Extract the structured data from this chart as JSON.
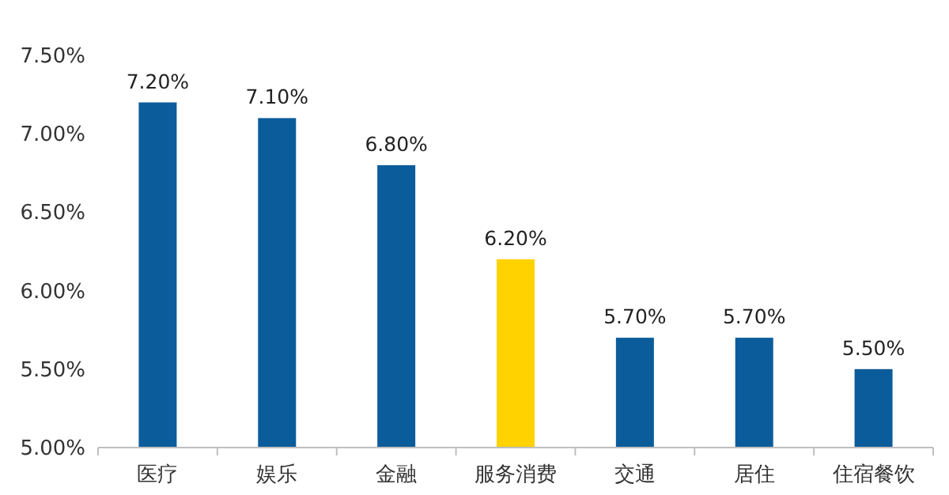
{
  "chart_data": {
    "type": "bar",
    "categories": [
      "医疗",
      "娱乐",
      "金融",
      "服务消费",
      "交通",
      "居住",
      "住宿餐饮"
    ],
    "values": [
      7.2,
      7.1,
      6.8,
      6.2,
      5.7,
      5.7,
      5.5
    ],
    "colors": [
      "#0b5c9a",
      "#0b5c9a",
      "#0b5c9a",
      "#ffd200",
      "#0b5c9a",
      "#0b5c9a",
      "#0b5c9a"
    ],
    "value_labels": [
      "7.20%",
      "7.10%",
      "6.80%",
      "6.20%",
      "5.70%",
      "5.70%",
      "5.50%"
    ],
    "ylim": [
      5,
      7.5
    ],
    "yticks": [
      {
        "value": 5,
        "label": "5.00%"
      },
      {
        "value": 5.5,
        "label": "5.50%"
      },
      {
        "value": 6,
        "label": "6.00%"
      },
      {
        "value": 6.5,
        "label": "6.50%"
      },
      {
        "value": 7,
        "label": "7.00%"
      },
      {
        "value": 7.5,
        "label": "7.50%"
      }
    ],
    "grid": false
  }
}
